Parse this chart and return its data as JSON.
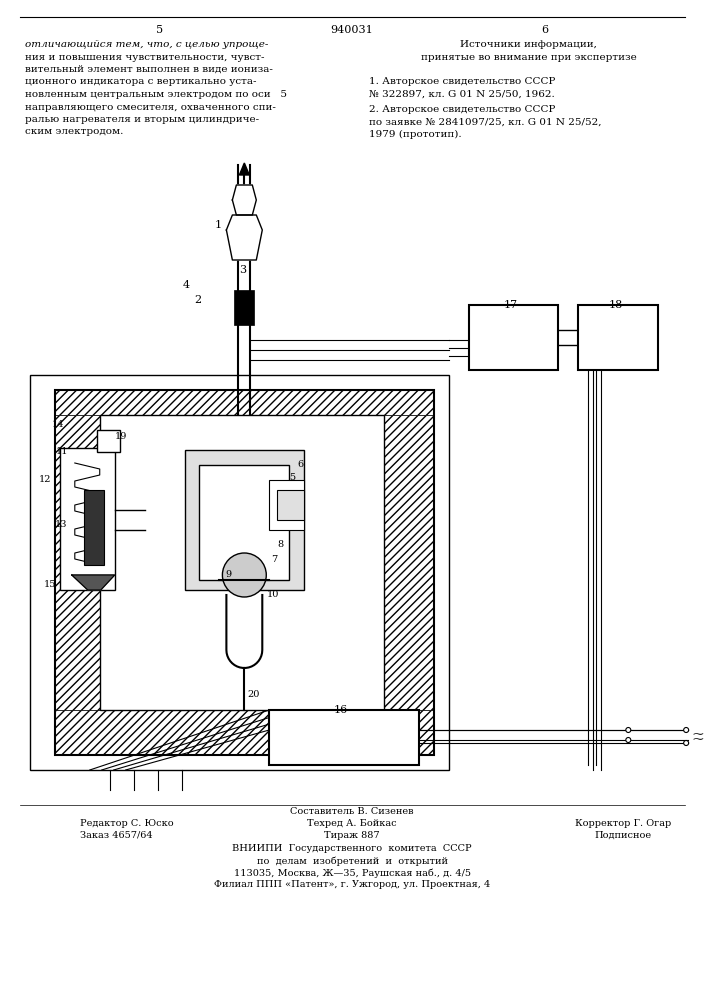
{
  "bg_color": "#ffffff",
  "text_color": "#000000",
  "page_left": "5",
  "page_center": "940031",
  "page_right": "6",
  "left_col": [
    [
      "отличающийся",
      "italic"
    ],
    [
      " тем, что, с целью упроще-",
      "normal"
    ],
    [
      "ния и повышения чувствительности, чувст-",
      "normal"
    ],
    [
      "вительный элемент выполнен в виде иониза-",
      "normal"
    ],
    [
      "ционного индикатора с вертикально уста-",
      "normal"
    ],
    [
      "новленным центральным электродом по оси   5",
      "normal"
    ],
    [
      "направляющего смесителя, охваченного спи-",
      "normal"
    ],
    [
      "ралью нагревателя и вторым цилиндриче-",
      "normal"
    ],
    [
      "ским электродом.",
      "normal"
    ]
  ],
  "right_title": "Источники информации,",
  "right_subtitle": "принятые во внимание при экспертизе",
  "ref1a": "1. Авторское свидетельство СССР",
  "ref1b": "№ 322897, кл. G 01 N 25/50, 1962.",
  "ref2a": "2. Авторское свидетельство СССР",
  "ref2b": "по заявке № 2841097/25, кл. G 01 N 25/52,",
  "ref2c": "1979 (прототип).",
  "foot0": "Составитель В. Сизенев",
  "foot1l": "Редактор С. Юско",
  "foot1c": "Техред А. Бойкас",
  "foot1r": "Корректор Г. Огар",
  "foot2l": "Заказ 4657/64",
  "foot2c": "Тираж 887",
  "foot2r": "Подписное",
  "foot3": "ВНИИПИ  Государственного  комитета  СССР",
  "foot4": "по  делам  изобретений  и  открытий",
  "foot5": "113035, Москва, Ж—35, Раушская наб., д. 4/5",
  "foot6": "Филиал ППП «Патент», г. Ужгород, ул. Проектная, 4"
}
